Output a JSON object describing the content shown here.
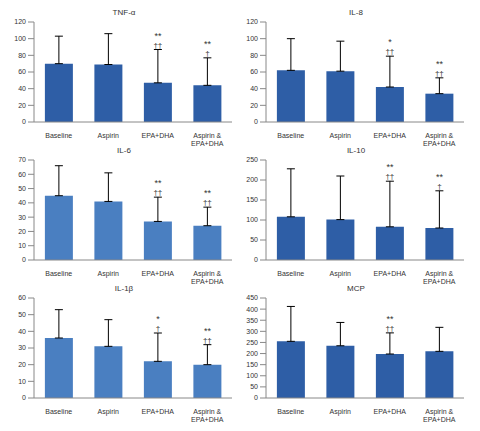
{
  "chart_data": [
    {
      "type": "bar",
      "title": "TNF-α",
      "categories": [
        "Baseline",
        "Aspirin",
        "EPA+DHA",
        "Aspirin & EPA+DHA"
      ],
      "values": [
        70,
        69,
        47,
        44
      ],
      "errors": [
        33,
        37,
        40,
        33
      ],
      "stars": [
        null,
        null,
        "**",
        "**"
      ],
      "daggers": [
        null,
        null,
        "††",
        "†"
      ],
      "color": "#2e5ea6",
      "ylim": [
        0,
        120
      ],
      "yticks": [
        0,
        20,
        40,
        60,
        80,
        100,
        120
      ],
      "grid": false
    },
    {
      "type": "bar",
      "title": "IL-8",
      "categories": [
        "Baseline",
        "Aspirin",
        "EPA+DHA",
        "Aspirin & EPA+DHA"
      ],
      "values": [
        62,
        61,
        42,
        34
      ],
      "errors": [
        38,
        36,
        37,
        19
      ],
      "stars": [
        null,
        null,
        "*",
        "**"
      ],
      "daggers": [
        null,
        null,
        "††",
        "††"
      ],
      "color": "#2e5ea6",
      "ylim": [
        0,
        120
      ],
      "yticks": [
        0,
        20,
        40,
        60,
        80,
        100,
        120
      ],
      "grid": false
    },
    {
      "type": "bar",
      "title": "IL-6",
      "categories": [
        "Baseline",
        "Aspirin",
        "EPA+DHA",
        "Aspirin & EPA+DHA"
      ],
      "values": [
        45,
        41,
        27,
        24
      ],
      "errors": [
        21,
        20,
        17,
        13
      ],
      "stars": [
        null,
        null,
        "**",
        "**"
      ],
      "daggers": [
        null,
        null,
        "††",
        "††"
      ],
      "color": "#4a7fc1",
      "ylim": [
        0,
        70
      ],
      "yticks": [
        0,
        10,
        20,
        30,
        40,
        50,
        60,
        70
      ],
      "grid": false
    },
    {
      "type": "bar",
      "title": "IL-10",
      "categories": [
        "Baseline",
        "Aspirin",
        "EPA+DHA",
        "Aspirin & EPA+DHA"
      ],
      "values": [
        108,
        101,
        83,
        80
      ],
      "errors": [
        120,
        109,
        114,
        93
      ],
      "stars": [
        null,
        null,
        "**",
        "**"
      ],
      "daggers": [
        null,
        null,
        "††",
        "†"
      ],
      "color": "#2e5ea6",
      "ylim": [
        0,
        250
      ],
      "yticks": [
        0,
        50,
        100,
        150,
        200,
        250
      ],
      "grid": false
    },
    {
      "type": "bar",
      "title": "IL-1β",
      "categories": [
        "Baseline",
        "Aspirin",
        "EPA+DHA",
        "Aspirin & EPA+DHA"
      ],
      "values": [
        36,
        31,
        22,
        20
      ],
      "errors": [
        17,
        16,
        17,
        12
      ],
      "stars": [
        null,
        null,
        "*",
        "**"
      ],
      "daggers": [
        null,
        null,
        "†",
        "††"
      ],
      "color": "#4a7fc1",
      "ylim": [
        0,
        60
      ],
      "yticks": [
        0,
        10,
        20,
        30,
        40,
        50,
        60
      ],
      "grid": false
    },
    {
      "type": "bar",
      "title": "MCP",
      "categories": [
        "Baseline",
        "Aspirin",
        "EPA+DHA",
        "Aspirin & EPA+DHA"
      ],
      "values": [
        255,
        235,
        198,
        210
      ],
      "errors": [
        157,
        105,
        95,
        108
      ],
      "stars": [
        null,
        null,
        "**",
        null
      ],
      "daggers": [
        null,
        null,
        "††",
        null
      ],
      "color": "#2e5ea6",
      "ylim": [
        0,
        450
      ],
      "yticks": [
        0,
        50,
        100,
        150,
        200,
        250,
        300,
        350,
        400,
        450
      ],
      "grid": false
    }
  ]
}
